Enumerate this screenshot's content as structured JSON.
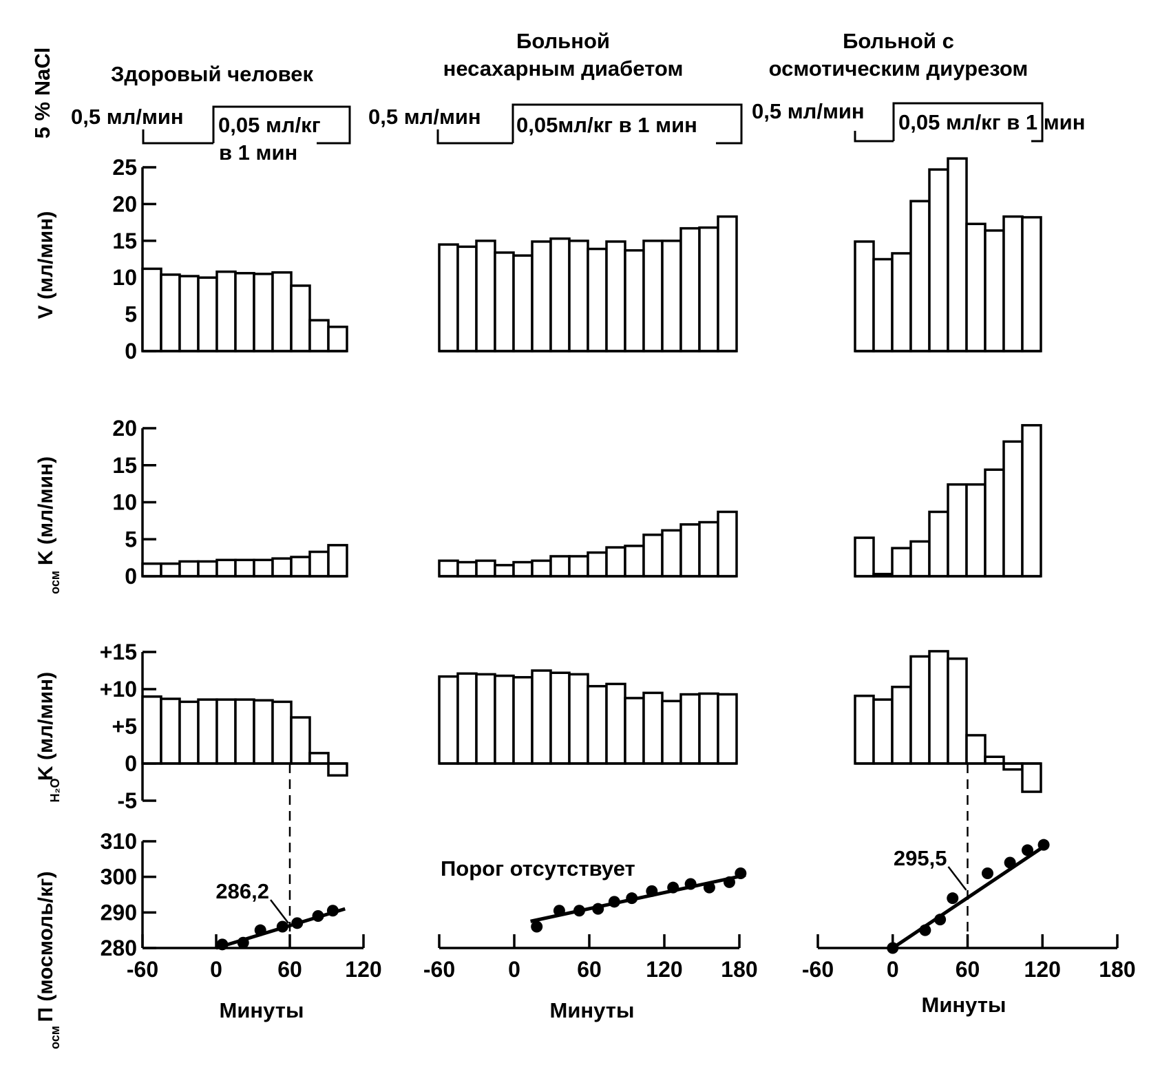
{
  "columns": [
    {
      "title_lines": [
        "Здоровый человек"
      ]
    },
    {
      "title_lines": [
        "Больной",
        "несахарным диабетом"
      ]
    },
    {
      "title_lines": [
        "Больной с",
        "осмотическим диурезом"
      ]
    }
  ],
  "infusion": {
    "row_label": "5 % NaCl",
    "phases": [
      {
        "rate1": "0,5 мл/мин",
        "rate2_lines": [
          "0,05 мл/кг",
          "в 1 мин"
        ]
      },
      {
        "rate1": "0,5 мл/мин",
        "rate2_lines": [
          "0,05мл/кг в 1 мин"
        ]
      },
      {
        "rate1": "0,5 мл/мин",
        "rate2_lines": [
          "0,05 мл/кг в 1 мин"
        ]
      }
    ]
  },
  "x_axis_label": "Минуты",
  "chart_data": [
    {
      "type": "bar",
      "panel": "V",
      "ylabel": "V (мл/мин)",
      "ylim": [
        0,
        25
      ],
      "yticks": [
        "0",
        "5",
        "10",
        "15",
        "20",
        "25"
      ],
      "series": [
        {
          "name": "Здоровый человек",
          "values": [
            11.2,
            10.4,
            10.2,
            10.0,
            10.8,
            10.6,
            10.5,
            10.7,
            8.9,
            4.2,
            3.3
          ]
        },
        {
          "name": "Больной несахарным диабетом",
          "values": [
            14.5,
            14.2,
            15.0,
            13.4,
            13.0,
            14.9,
            15.3,
            15.0,
            13.9,
            14.9,
            13.7,
            15.0,
            15.0,
            16.7,
            16.8,
            18.3
          ]
        },
        {
          "name": "Больной с осмотическим диурезом",
          "values": [
            14.9,
            12.5,
            13.3,
            20.4,
            24.7,
            26.2,
            17.3,
            16.4,
            18.3,
            18.2
          ]
        }
      ]
    },
    {
      "type": "bar",
      "panel": "Kosm",
      "ylabel": "K (мл/мин)",
      "ylabel_sub": "осм",
      "ylim": [
        0,
        20
      ],
      "yticks": [
        "0",
        "5",
        "10",
        "15",
        "20"
      ],
      "series": [
        {
          "name": "Здоровый человек",
          "values": [
            1.7,
            1.7,
            2.0,
            2.0,
            2.2,
            2.2,
            2.2,
            2.4,
            2.6,
            3.3,
            4.2
          ]
        },
        {
          "name": "Больной несахарным диабетом",
          "values": [
            2.1,
            1.9,
            2.1,
            1.5,
            1.9,
            2.1,
            2.7,
            2.7,
            3.2,
            3.9,
            4.1,
            5.6,
            6.2,
            7.0,
            7.3,
            8.7
          ]
        },
        {
          "name": "Больной с осмотическим диурезом",
          "values": [
            5.2,
            0.3,
            3.8,
            4.7,
            8.7,
            12.4,
            12.4,
            14.4,
            18.2,
            20.4
          ]
        }
      ]
    },
    {
      "type": "bar",
      "panel": "KH2O",
      "ylabel": "K (мл/мин)",
      "ylabel_sub": "H₂O",
      "ylim": [
        -5,
        15
      ],
      "yticks": [
        "-5",
        "0",
        "+5",
        "+10",
        "+15"
      ],
      "series": [
        {
          "name": "Здоровый человек",
          "values": [
            9.0,
            8.7,
            8.3,
            8.6,
            8.6,
            8.6,
            8.5,
            8.3,
            6.2,
            1.4,
            -1.6
          ]
        },
        {
          "name": "Больной несахарным диабетом",
          "values": [
            11.7,
            12.1,
            12.0,
            11.8,
            11.6,
            12.5,
            12.2,
            12.0,
            10.4,
            10.7,
            8.8,
            9.5,
            8.4,
            9.3,
            9.4,
            9.3
          ]
        },
        {
          "name": "Больной с осмотическим диурезом",
          "values": [
            9.1,
            8.6,
            10.3,
            14.4,
            15.1,
            14.1,
            3.8,
            0.9,
            -0.8,
            -3.8
          ]
        }
      ]
    },
    {
      "type": "scatter",
      "panel": "Posm",
      "ylabel": "П (мосмоль/кг)",
      "ylabel_sub": "осм",
      "ylim": [
        280,
        310
      ],
      "yticks": [
        "280",
        "290",
        "300",
        "310"
      ],
      "xticks": [
        [
          "-60",
          "0",
          "60",
          "120"
        ],
        [
          "-60",
          "0",
          "60",
          "120",
          "180"
        ],
        [
          "-60",
          "0",
          "60",
          "120",
          "180"
        ]
      ],
      "xlim": [
        [
          -60,
          120
        ],
        [
          -60,
          180
        ],
        [
          -60,
          180
        ]
      ],
      "series": [
        {
          "name": "Здоровый человек",
          "points": [
            [
              5,
              281
            ],
            [
              22,
              281.5
            ],
            [
              36,
              285
            ],
            [
              54,
              286
            ],
            [
              66,
              287
            ],
            [
              83,
              289
            ],
            [
              95,
              290.5
            ]
          ],
          "fit": [
            [
              0,
              280
            ],
            [
              105,
              291
            ]
          ],
          "threshold_x": 60,
          "threshold_label": "286,2"
        },
        {
          "name": "Больной несахарным диабетом",
          "points": [
            [
              18,
              286
            ],
            [
              36,
              290.5
            ],
            [
              52,
              290.5
            ],
            [
              67,
              291
            ],
            [
              80,
              293
            ],
            [
              94,
              294
            ],
            [
              110,
              296
            ],
            [
              127,
              297
            ],
            [
              141,
              298
            ],
            [
              156,
              297
            ],
            [
              172,
              298.5
            ],
            [
              181,
              301
            ]
          ],
          "fit": [
            [
              13,
              287.5
            ],
            [
              185,
              300.5
            ]
          ],
          "annotation": "Порог отсутствует"
        },
        {
          "name": "Больной с осмотическим диурезом",
          "points": [
            [
              0,
              280
            ],
            [
              26,
              285
            ],
            [
              38,
              288
            ],
            [
              48,
              294
            ],
            [
              76,
              301
            ],
            [
              94,
              304
            ],
            [
              108,
              307.5
            ],
            [
              121,
              309
            ]
          ],
          "fit": [
            [
              0,
              280
            ],
            [
              121,
              308.5
            ]
          ],
          "threshold_x": 60,
          "threshold_label": "295,5"
        }
      ]
    }
  ]
}
